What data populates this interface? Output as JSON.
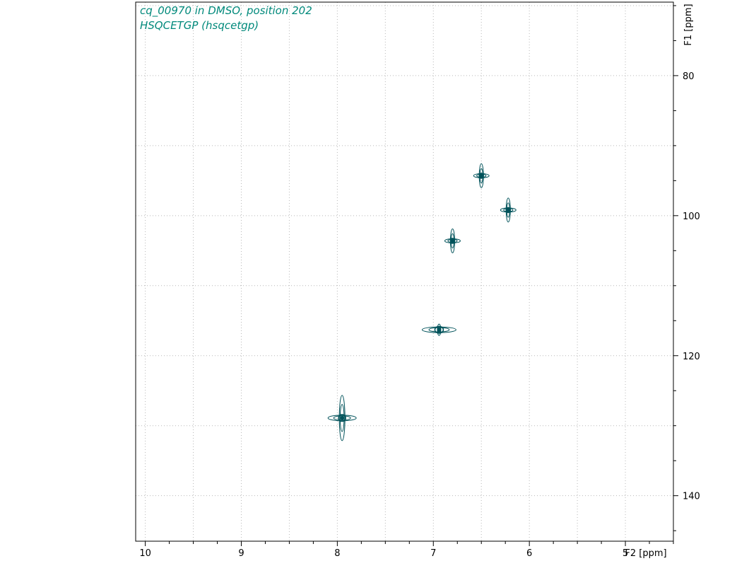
{
  "header": {
    "title_line1": "cq_00970 in DMSO, position 202",
    "title_line2": "HSQCETGP (hsqcetgp)"
  },
  "chart_data": {
    "type": "scatter",
    "subtype": "2D NMR HSQC contour plot",
    "xlabel": "F2 [ppm]",
    "ylabel": "F1 [ppm]",
    "xlim": [
      10.1,
      4.5
    ],
    "ylim": [
      69.5,
      146.5
    ],
    "x_ticks": [
      10,
      9,
      8,
      7,
      6,
      5
    ],
    "y_ticks": [
      80,
      100,
      120,
      140
    ],
    "grid": true,
    "contour_color": "#00525a",
    "title_color": "#00897b",
    "peaks": [
      {
        "x": 6.5,
        "y": 94.3,
        "size": "medium"
      },
      {
        "x": 6.22,
        "y": 99.2,
        "size": "medium"
      },
      {
        "x": 6.8,
        "y": 103.6,
        "size": "medium"
      },
      {
        "x": 6.94,
        "y": 116.3,
        "size": "wide"
      },
      {
        "x": 7.95,
        "y": 128.9,
        "size": "large"
      }
    ]
  }
}
